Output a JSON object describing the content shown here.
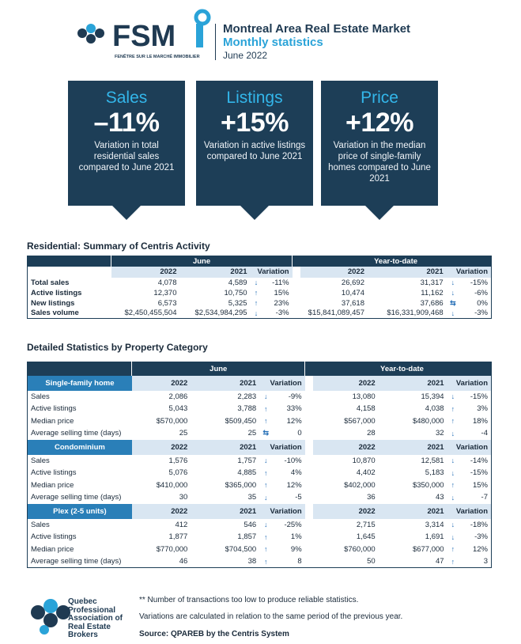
{
  "header": {
    "logo_text": "FSM",
    "logo_tagline": "FENÊTRE SUR LE MARCHÉ IMMOBILIER",
    "title": "Montreal Area Real Estate Market",
    "subtitle": "Monthly statistics",
    "date": "June 2022"
  },
  "cards": [
    {
      "title": "Sales",
      "value": "–11%",
      "desc": "Variation in total residential sales compared to June 2021"
    },
    {
      "title": "Listings",
      "value": "+15%",
      "desc": "Variation in active listings compared to June 2021"
    },
    {
      "title": "Price",
      "value": "+12%",
      "desc": "Variation in the median price of single-family homes compared to June 2021"
    }
  ],
  "summary": {
    "title": "Residential: Summary of Centris Activity",
    "june_label": "June",
    "ytd_label": "Year-to-date",
    "col_2022": "2022",
    "col_2021": "2021",
    "col_var": "Variation",
    "rows": [
      {
        "label": "Total sales",
        "j22": "4,078",
        "j21": "4,589",
        "jdir": "down",
        "jvar": "-11%",
        "y22": "26,692",
        "y21": "31,317",
        "ydir": "down",
        "yvar": "-15%"
      },
      {
        "label": "Active listings",
        "j22": "12,370",
        "j21": "10,750",
        "jdir": "up",
        "jvar": "15%",
        "y22": "10,474",
        "y21": "11,162",
        "ydir": "down",
        "yvar": "-6%"
      },
      {
        "label": "New listings",
        "j22": "6,573",
        "j21": "5,325",
        "jdir": "up",
        "jvar": "23%",
        "y22": "37,618",
        "y21": "37,686",
        "ydir": "flat",
        "yvar": "0%"
      },
      {
        "label": "Sales volume",
        "j22": "$2,450,455,504",
        "j21": "$2,534,984,295",
        "jdir": "down",
        "jvar": "-3%",
        "y22": "$15,841,089,457",
        "y21": "$16,331,909,468",
        "ydir": "down",
        "yvar": "-3%"
      }
    ]
  },
  "detail": {
    "title": "Detailed Statistics by Property Category",
    "june_label": "June",
    "ytd_label": "Year-to-date",
    "col_2022": "2022",
    "col_2021": "2021",
    "col_var": "Variation",
    "categories": [
      {
        "name": "Single-family home",
        "rows": [
          {
            "label": "Sales",
            "j22": "2,086",
            "j21": "2,283",
            "jdir": "down",
            "jvar": "-9%",
            "y22": "13,080",
            "y21": "15,394",
            "ydir": "down",
            "yvar": "-15%"
          },
          {
            "label": "Active listings",
            "j22": "5,043",
            "j21": "3,788",
            "jdir": "up",
            "jvar": "33%",
            "y22": "4,158",
            "y21": "4,038",
            "ydir": "up",
            "yvar": "3%"
          },
          {
            "label": "Median price",
            "j22": "$570,000",
            "j21": "$509,450",
            "jdir": "up",
            "jvar": "12%",
            "y22": "$567,000",
            "y21": "$480,000",
            "ydir": "up",
            "yvar": "18%"
          },
          {
            "label": "Average selling time (days)",
            "j22": "25",
            "j21": "25",
            "jdir": "flat",
            "jvar": "0",
            "y22": "28",
            "y21": "32",
            "ydir": "down",
            "yvar": "-4"
          }
        ]
      },
      {
        "name": "Condominium",
        "rows": [
          {
            "label": "Sales",
            "j22": "1,576",
            "j21": "1,757",
            "jdir": "down",
            "jvar": "-10%",
            "y22": "10,870",
            "y21": "12,581",
            "ydir": "down",
            "yvar": "-14%"
          },
          {
            "label": "Active listings",
            "j22": "5,076",
            "j21": "4,885",
            "jdir": "up",
            "jvar": "4%",
            "y22": "4,402",
            "y21": "5,183",
            "ydir": "down",
            "yvar": "-15%"
          },
          {
            "label": "Median price",
            "j22": "$410,000",
            "j21": "$365,000",
            "jdir": "up",
            "jvar": "12%",
            "y22": "$402,000",
            "y21": "$350,000",
            "ydir": "up",
            "yvar": "15%"
          },
          {
            "label": "Average selling time (days)",
            "j22": "30",
            "j21": "35",
            "jdir": "down",
            "jvar": "-5",
            "y22": "36",
            "y21": "43",
            "ydir": "down",
            "yvar": "-7"
          }
        ]
      },
      {
        "name": "Plex (2-5 units)",
        "rows": [
          {
            "label": "Sales",
            "j22": "412",
            "j21": "546",
            "jdir": "down",
            "jvar": "-25%",
            "y22": "2,715",
            "y21": "3,314",
            "ydir": "down",
            "yvar": "-18%"
          },
          {
            "label": "Active listings",
            "j22": "1,877",
            "j21": "1,857",
            "jdir": "up",
            "jvar": "1%",
            "y22": "1,645",
            "y21": "1,691",
            "ydir": "down",
            "yvar": "-3%"
          },
          {
            "label": "Median price",
            "j22": "$770,000",
            "j21": "$704,500",
            "jdir": "up",
            "jvar": "9%",
            "y22": "$760,000",
            "y21": "$677,000",
            "ydir": "up",
            "yvar": "12%"
          },
          {
            "label": "Average selling time (days)",
            "j22": "46",
            "j21": "38",
            "jdir": "up",
            "jvar": "8",
            "y22": "50",
            "y21": "47",
            "ydir": "up",
            "yvar": "3"
          }
        ]
      }
    ]
  },
  "footer": {
    "org": "Quebec Professional Association of Real Estate Brokers",
    "note1": "**  Number of transactions too low to produce reliable statistics.",
    "note2": "Variations are calculated in relation to the same period of the previous year.",
    "source": "Source: QPAREB by the Centris System"
  },
  "colors": {
    "navy": "#1d3e57",
    "accent": "#33b6ea",
    "category": "#2a7fb8",
    "subheader": "#d9e6f2"
  },
  "icons": {
    "up": "arrow-up-icon",
    "down": "arrow-down-icon",
    "flat": "stable-arrows-icon"
  }
}
